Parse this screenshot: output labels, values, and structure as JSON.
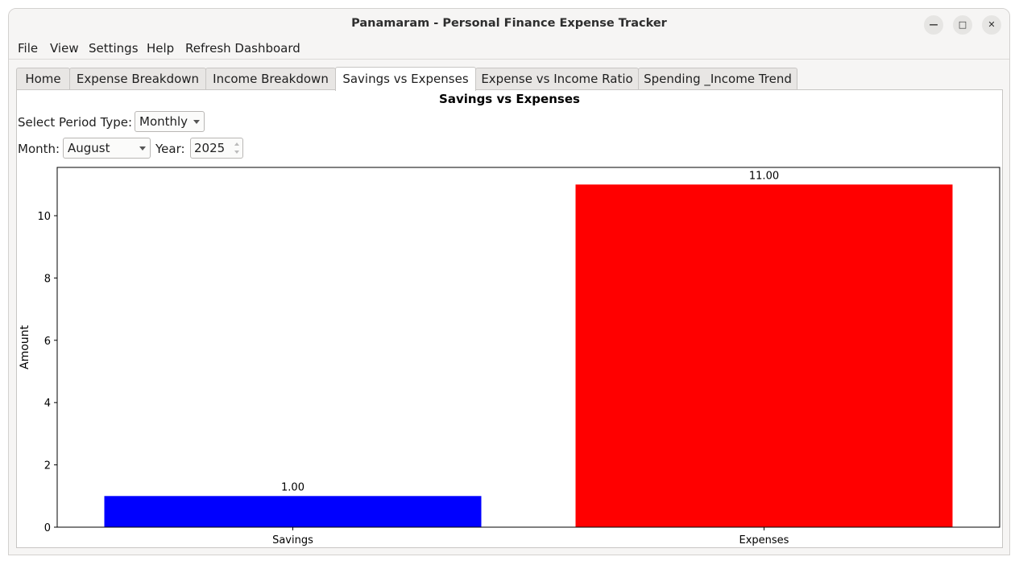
{
  "window": {
    "title": "Panamaram - Personal Finance Expense Tracker",
    "controls": {
      "minimize": "minimize-icon",
      "maximize": "maximize-icon",
      "close": "close-icon"
    }
  },
  "menu": {
    "items": [
      "File",
      "View",
      "Settings",
      "Help",
      "Refresh Dashboard"
    ]
  },
  "tabs": [
    {
      "label": "Home",
      "active": false
    },
    {
      "label": "Expense Breakdown",
      "active": false
    },
    {
      "label": "Income Breakdown",
      "active": false
    },
    {
      "label": "Savings vs Expenses",
      "active": true
    },
    {
      "label": "Expense vs Income Ratio",
      "active": false
    },
    {
      "label": "Spending _Income Trend",
      "active": false
    }
  ],
  "panel": {
    "title": "Savings vs Expenses",
    "period_label": "Select Period Type:",
    "period_value": "Monthly",
    "month_label": "Month:",
    "month_value": "August",
    "year_label": "Year:",
    "year_value": "2025"
  },
  "chart_data": {
    "type": "bar",
    "title": "",
    "xlabel": "",
    "ylabel": "Amount",
    "categories": [
      "Savings",
      "Expenses"
    ],
    "values": [
      1.0,
      11.0
    ],
    "value_labels": [
      "1.00",
      "11.00"
    ],
    "colors": [
      "#0000ff",
      "#ff0000"
    ],
    "ylim": [
      0,
      11.55
    ],
    "yticks": [
      0,
      2,
      4,
      6,
      8,
      10
    ],
    "grid": false,
    "legend": "none"
  }
}
